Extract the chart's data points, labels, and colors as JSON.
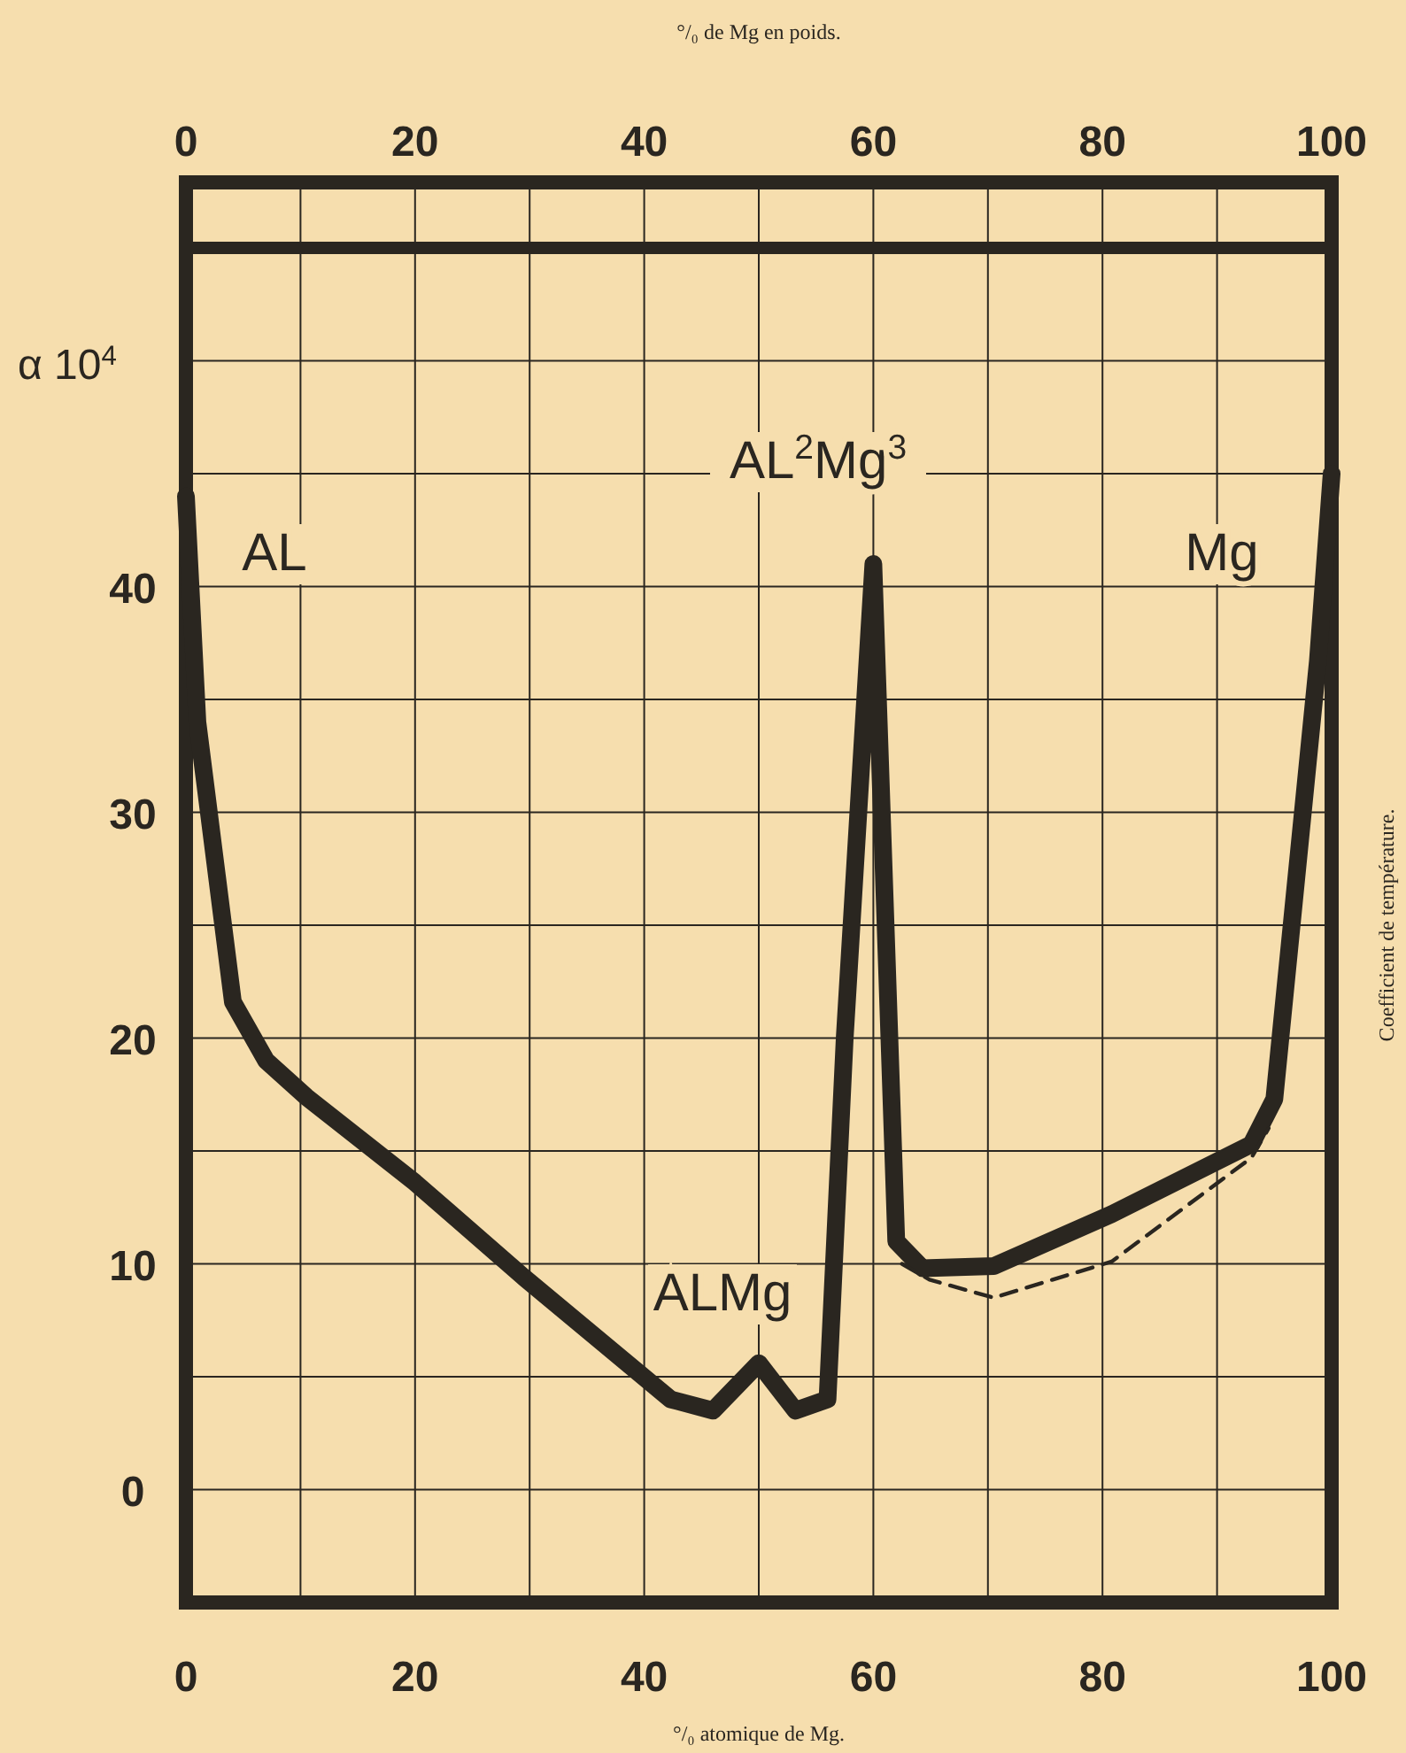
{
  "chart_data": {
    "type": "line",
    "xlabel": "°/₀ atomique de Mg.",
    "x2label": "°/₀ de Mg en poids.",
    "ylabel": "α 10$^{4}$",
    "annotations": [
      "Coefficient de température.",
      "AL",
      "AL$^{2}$Mg$^{3}$",
      "ALMg",
      "Mg"
    ],
    "xlim": [
      0,
      100
    ],
    "xticks": [
      0,
      {
        "value": 10,
        "label": null
      },
      20,
      {
        "value": 30,
        "label": null
      },
      40,
      {
        "value": 50,
        "label": null
      },
      60,
      {
        "value": 70,
        "label": null
      },
      80,
      {
        "value": 90,
        "label": null
      },
      100
    ],
    "x2lim": [
      0,
      100
    ],
    "x2ticks": [
      0,
      {
        "value": 10,
        "label": null
      },
      20,
      {
        "value": 30,
        "label": null
      },
      40,
      {
        "value": 50,
        "label": null
      },
      60,
      {
        "value": 70,
        "label": null
      },
      80,
      {
        "value": 90,
        "label": null
      },
      100
    ],
    "ylim": [
      -5,
      55
    ],
    "yticks": [
      {
        "value": -5,
        "label": null
      },
      0,
      {
        "value": 5,
        "label": null
      },
      10,
      {
        "value": 15,
        "label": null
      },
      20,
      {
        "value": 25,
        "label": null
      },
      30,
      {
        "value": 35,
        "label": null
      },
      40,
      {
        "value": 45,
        "label": null
      },
      {
        "value": 50,
        "label": null
      },
      {
        "value": 55,
        "label": null
      }
    ],
    "grid": true,
    "marker": "none",
    "series": [
      {
        "color": "#2a2620",
        "line_style": "solid",
        "x": [
          0,
          1,
          4.1,
          7,
          10.5,
          20,
          29.5,
          42.3,
          46,
          50,
          53.2,
          56,
          57.5,
          60,
          62,
          64.3,
          70.5,
          80.8,
          93,
          95,
          98.8,
          100
        ],
        "values": [
          44,
          34,
          21.6,
          19,
          17.4,
          13.6,
          9.4,
          4,
          3.5,
          5.6,
          3.5,
          4,
          20,
          41,
          11,
          9.8,
          9.9,
          12.2,
          15.3,
          17.3,
          36.7,
          45
        ]
      },
      {
        "color": "#2a2620",
        "line_style": "dashed",
        "x": [
          62.5,
          64.9,
          70.5,
          80.8,
          93,
          94.5
        ],
        "values": [
          10,
          9.3,
          8.5,
          10.1,
          14.7,
          16
        ]
      }
    ]
  }
}
